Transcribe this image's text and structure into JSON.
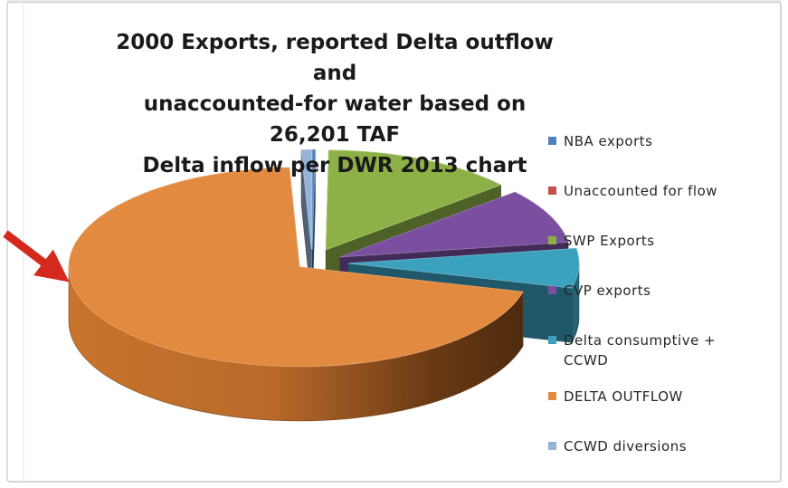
{
  "chart_data": {
    "type": "pie",
    "title_lines": [
      "2000 Exports, reported Delta outflow and",
      "unaccounted-for water based on 26,201 TAF",
      "Delta inflow per DWR 2013 chart"
    ],
    "series": [
      {
        "name": "NBA exports",
        "value": 0.2,
        "color": "#4f81bd"
      },
      {
        "name": "Unaccounted for flow",
        "value": 0.0,
        "color": "#c0504d"
      },
      {
        "name": "SWP Exports",
        "value": 13.5,
        "color": "#8db146"
      },
      {
        "name": "CVP exports",
        "value": 8.9,
        "color": "#7a4f9f"
      },
      {
        "name": "Delta consumptive + CCWD",
        "value": 6.4,
        "color": "#3ca0bf"
      },
      {
        "name": "DELTA OUTFLOW",
        "value": 70.3,
        "color": "#e28a3f"
      },
      {
        "name": "CCWD diversions",
        "value": 0.7,
        "color": "#95b3d7"
      }
    ],
    "style": "3d-exploded",
    "legend_position": "right"
  },
  "annotation": {
    "arrow_color": "#d42a1e"
  }
}
